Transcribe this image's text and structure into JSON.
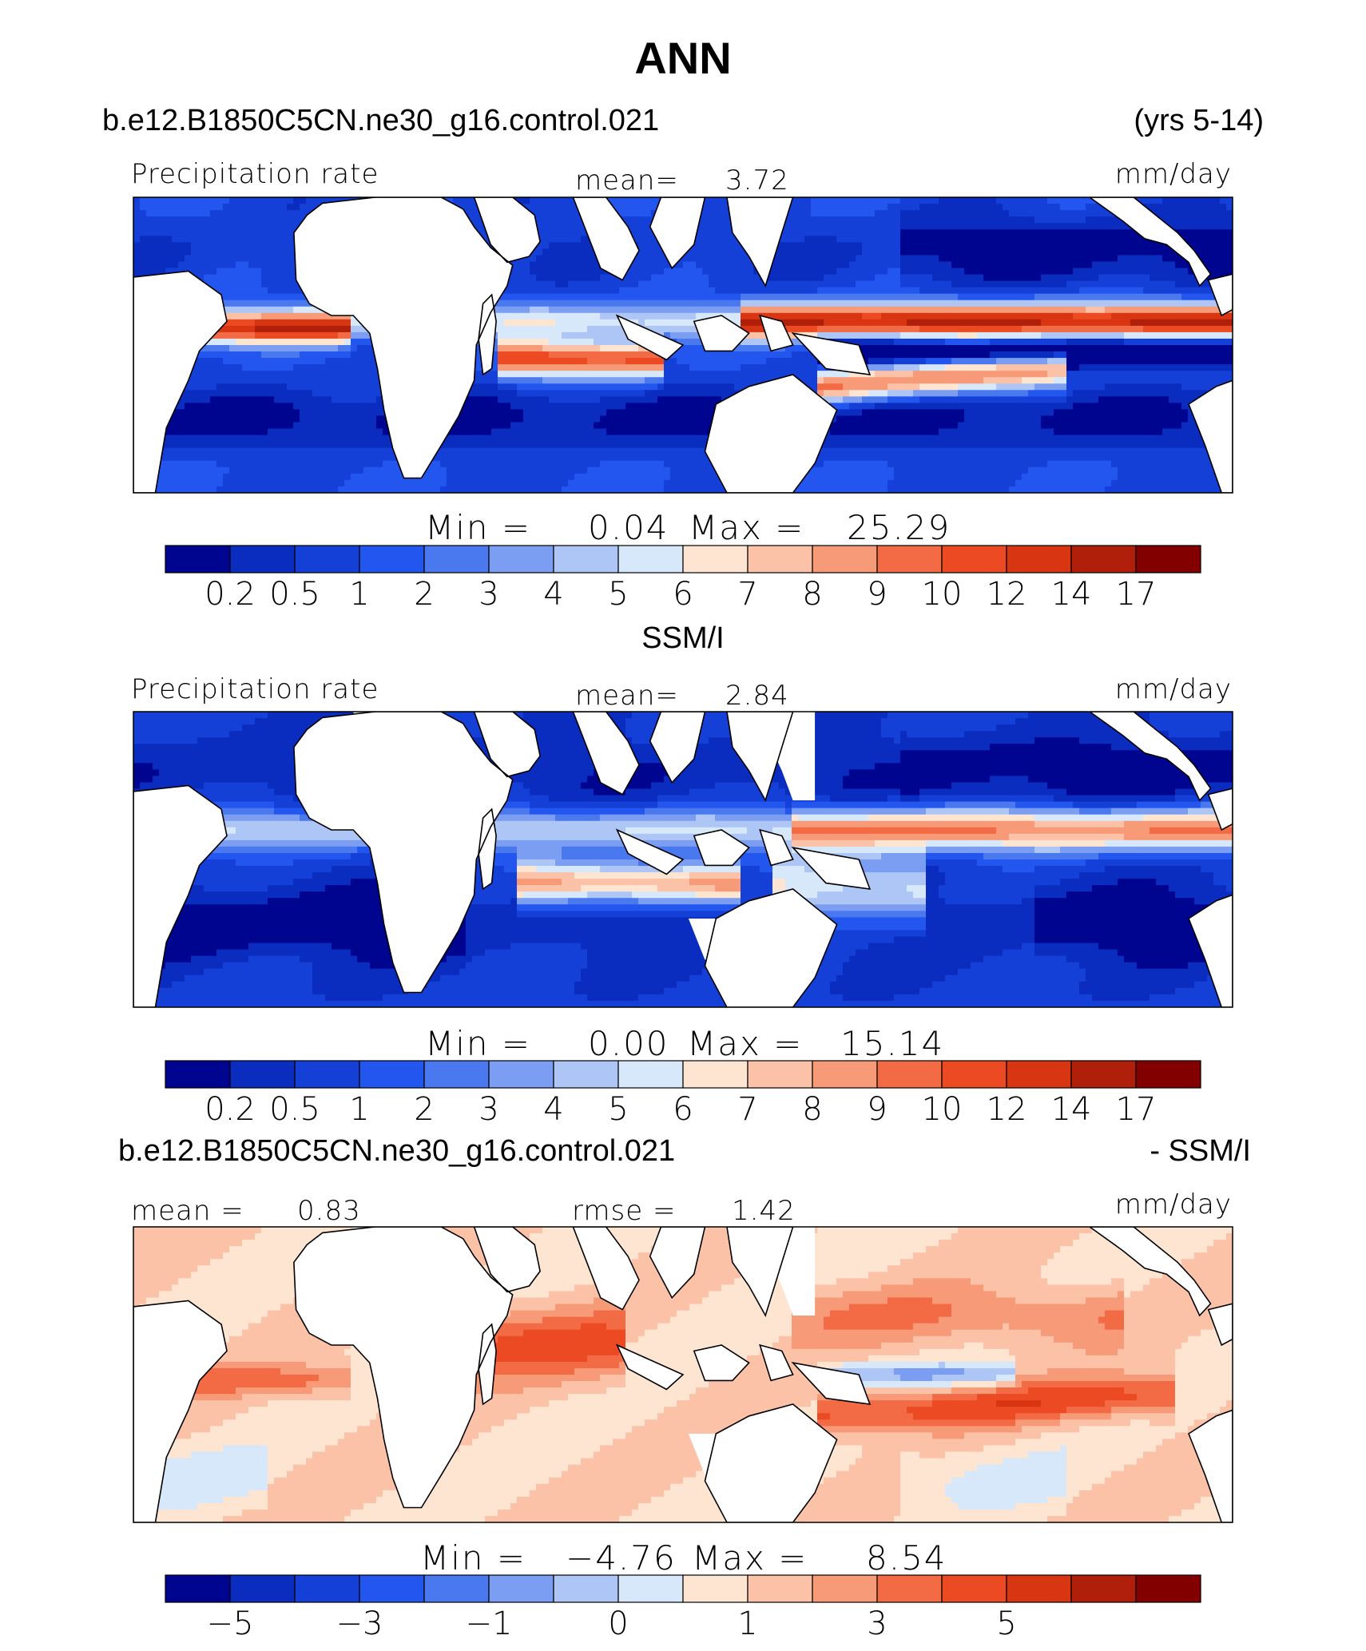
{
  "title": "ANN",
  "case_name": "b.e12.B1850C5CN.ne30_g16.control.021",
  "years": "(yrs 5-14)",
  "panels": [
    {
      "id": "model",
      "heading": "",
      "left_label": "Precipitation rate",
      "stat_label": "mean=",
      "stat_value": "3.72",
      "units": "mm/day",
      "min_label": "Min  =",
      "min_value": "0.04",
      "max_label": "Max  =",
      "max_value": "25.29",
      "colorbar_labels": [
        "0.2",
        "0.5",
        "1",
        "2",
        "3",
        "4",
        "5",
        "6",
        "7",
        "8",
        "9",
        "10",
        "12",
        "14",
        "17"
      ]
    },
    {
      "id": "obs",
      "heading": "SSM/I",
      "left_label": "Precipitation rate",
      "stat_label": "mean=",
      "stat_value": "2.84",
      "units": "mm/day",
      "min_label": "Min  =",
      "min_value": "0.00",
      "max_label": "Max  =",
      "max_value": "15.14",
      "colorbar_labels": [
        "0.2",
        "0.5",
        "1",
        "2",
        "3",
        "4",
        "5",
        "6",
        "7",
        "8",
        "9",
        "10",
        "12",
        "14",
        "17"
      ]
    },
    {
      "id": "diff",
      "heading_left": "b.e12.B1850C5CN.ne30_g16.control.021",
      "heading_right": "- SSM/I",
      "left_label": "mean  =",
      "left_value": "0.83",
      "stat_label": "rmse  =",
      "stat_value": "1.42",
      "units": "mm/day",
      "min_label": "Min  =",
      "min_value": "−4.76",
      "max_label": "Max  =",
      "max_value": "8.54",
      "colorbar_labels": [
        "−5",
        "",
        "−3",
        "",
        "−1",
        "",
        "0",
        "",
        "1",
        "",
        "3",
        "",
        "5",
        ""
      ]
    }
  ],
  "colors": {
    "palette": [
      "#00058f",
      "#0a2dc0",
      "#1540d8",
      "#2356ee",
      "#4a78ee",
      "#7b9df2",
      "#aec6f6",
      "#d8e8fb",
      "#fde5d2",
      "#fbc2a8",
      "#f79a78",
      "#f26b45",
      "#ec4a22",
      "#d83512",
      "#b01f0a",
      "#820000"
    ],
    "land": "#ffffff",
    "coast": "#000000"
  }
}
